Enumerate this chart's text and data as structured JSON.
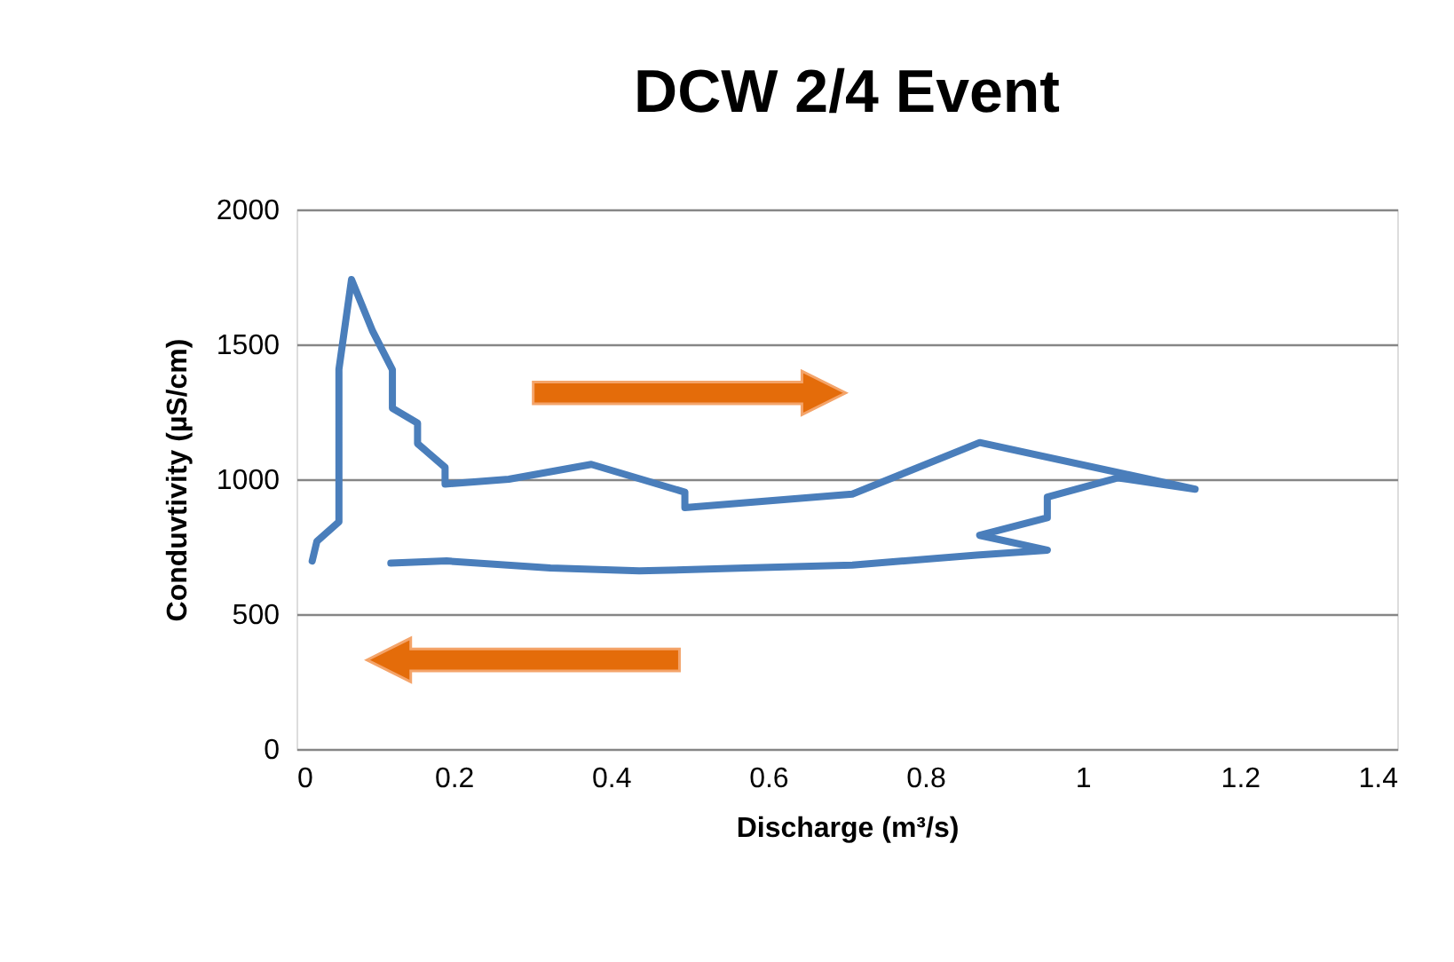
{
  "chart_data": {
    "type": "line",
    "title": "DCW 2/4 Event",
    "xlabel": "Discharge (m³/s)",
    "ylabel": "Conduvtivity (µS/cm)",
    "xlim": [
      0,
      1.4
    ],
    "xticks": [
      0,
      0.2,
      0.4,
      0.6,
      0.8,
      1,
      1.2,
      1.4
    ],
    "ylim": [
      0,
      2000
    ],
    "yticks": [
      0,
      500,
      1000,
      1500,
      2000
    ],
    "grid": "y",
    "marker": "none",
    "line_style": "solid",
    "series": [
      {
        "color": "#4a7ebb",
        "x": [
          0.02,
          0.026,
          0.054,
          0.054,
          0.07,
          0.097,
          0.122,
          0.122,
          0.154,
          0.154,
          0.189,
          0.189,
          0.27,
          0.375,
          0.494,
          0.494,
          0.707,
          0.869,
          1.143,
          1.045,
          0.955,
          0.955,
          0.869,
          0.955,
          0.865,
          0.707,
          0.571,
          0.436,
          0.323,
          0.191,
          0.12
        ],
        "values": [
          697,
          770,
          842,
          1408,
          1740,
          1548,
          1406,
          1263,
          1208,
          1132,
          1044,
          982,
          1000,
          1055,
          952,
          895,
          945,
          1136,
          963,
          1005,
          934,
          857,
          792,
          737,
          719,
          682,
          671,
          660,
          671,
          697,
          689
        ]
      }
    ]
  }
}
